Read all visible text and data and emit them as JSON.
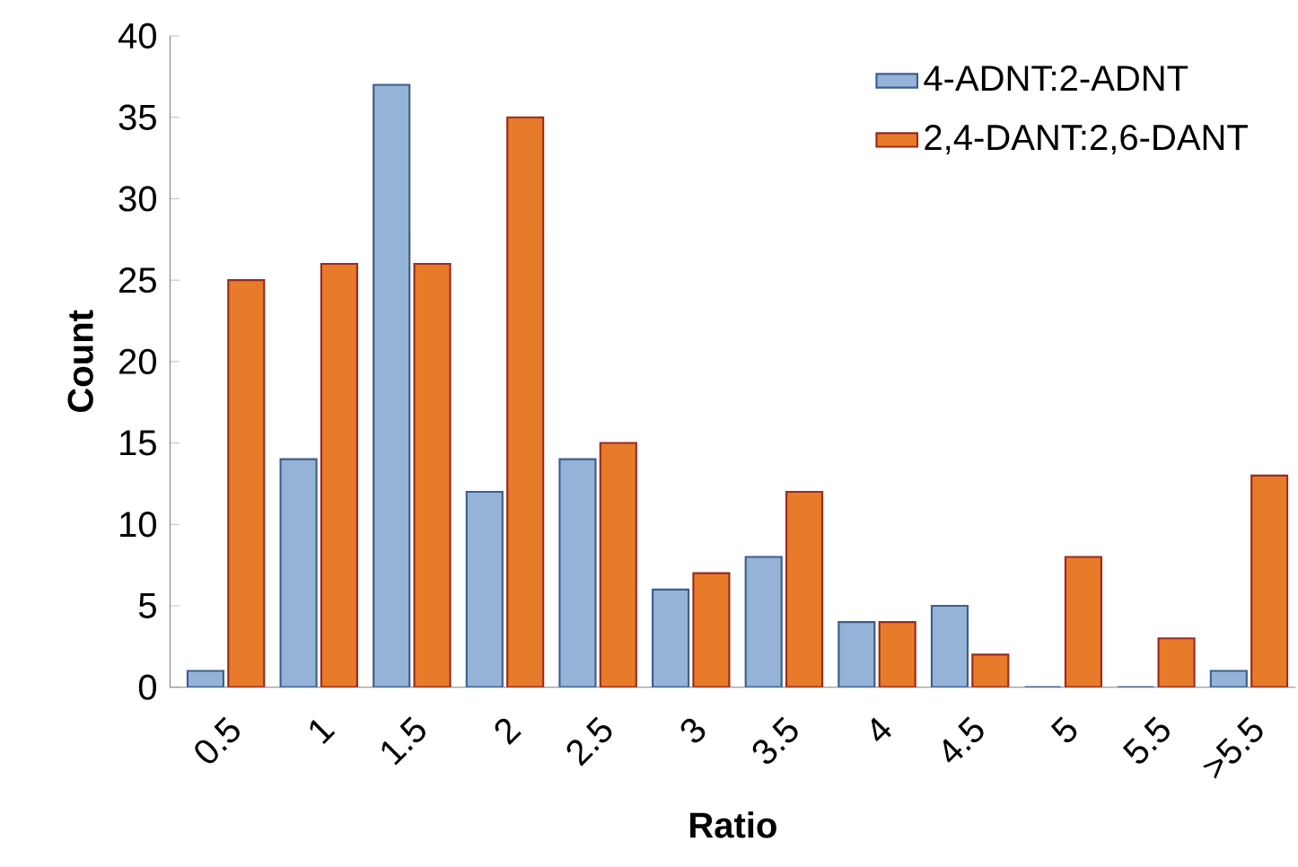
{
  "chart_data": {
    "type": "bar",
    "xlabel": "Ratio",
    "ylabel": "Count",
    "categories": [
      "0.5",
      "1",
      "1.5",
      "2",
      "2.5",
      "3",
      "3.5",
      "4",
      "4.5",
      "5",
      "5.5",
      ">5.5"
    ],
    "series": [
      {
        "name": "4-ADNT:2-ADNT",
        "color": "#95b3d7",
        "values": [
          1,
          14,
          37,
          12,
          14,
          6,
          8,
          4,
          5,
          0,
          0,
          1
        ]
      },
      {
        "name": "2,4-DANT:2,6-DANT",
        "color": "#e87b2a",
        "values": [
          25,
          26,
          26,
          35,
          15,
          7,
          12,
          4,
          2,
          8,
          3,
          13
        ]
      }
    ],
    "ylim": [
      0,
      40
    ],
    "yticks": [
      0,
      5,
      10,
      15,
      20,
      25,
      30,
      35,
      40
    ],
    "grid": false,
    "legend": "top right"
  }
}
